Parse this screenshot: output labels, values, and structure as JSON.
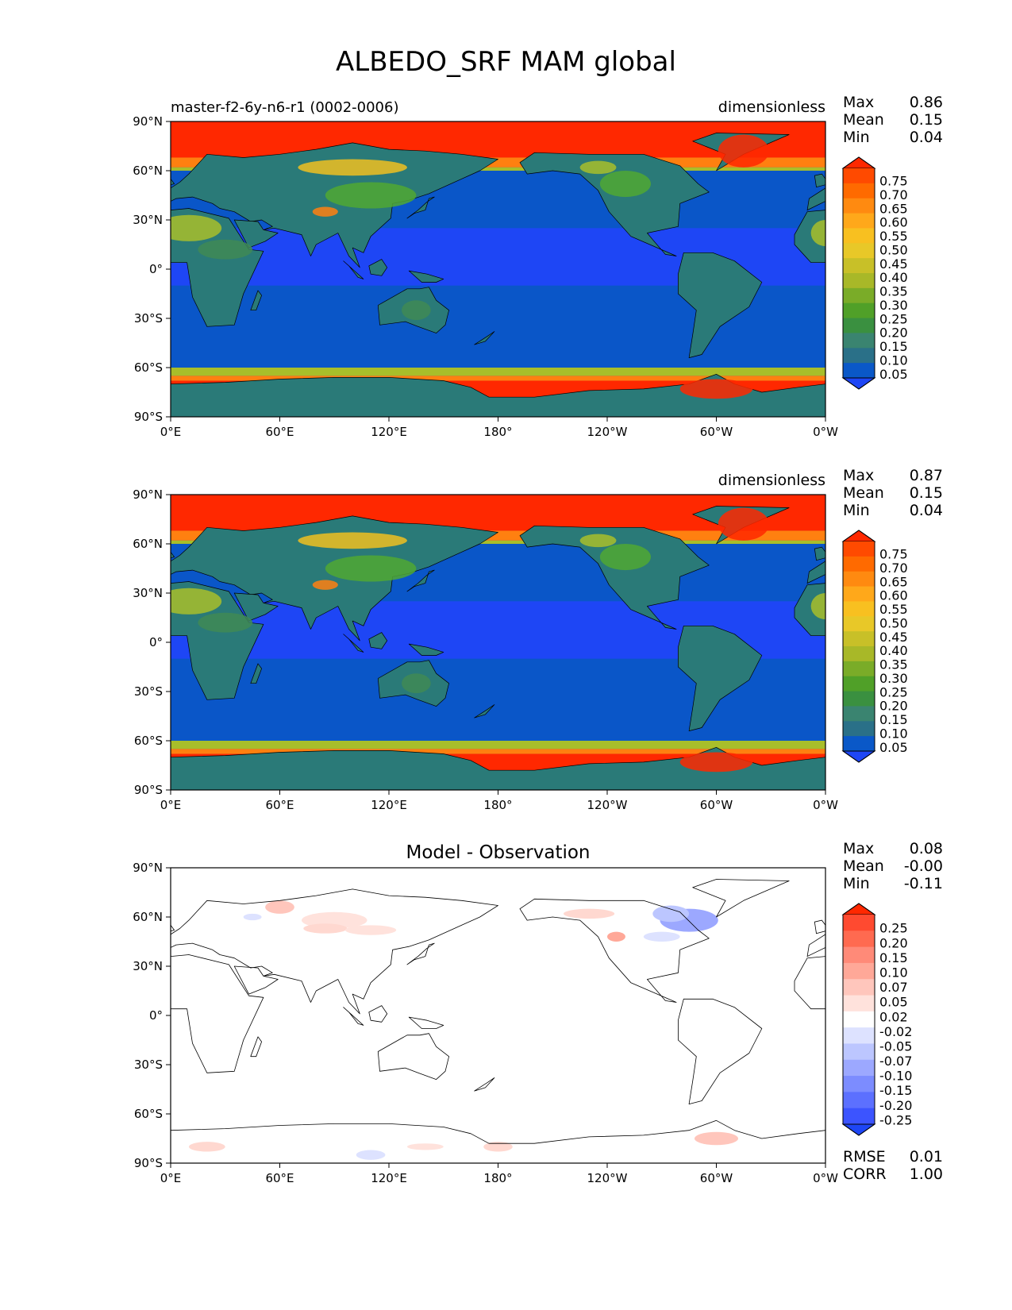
{
  "title": "ALBEDO_SRF MAM global",
  "colors": {
    "land_blue": "#0a56c8",
    "ocean_blue": "#1e46f5",
    "green_dark": "#2a7a78",
    "green": "#3f8a55",
    "green_bright": "#50a832",
    "yellow_green": "#a8be2a",
    "yellow": "#f0c020",
    "orange": "#ff8010",
    "red": "#ff2800"
  },
  "chart_data": [
    {
      "type": "heatmap",
      "title": "",
      "left_title": "master-f2-6y-n6-r1 (0002-0006)",
      "units": "dimensionless",
      "xlim": [
        0,
        360
      ],
      "ylim": [
        -90,
        90
      ],
      "x_ticks": [
        "0°E",
        "60°E",
        "120°E",
        "180°",
        "120°W",
        "60°W",
        "0°W"
      ],
      "y_ticks": [
        "90°N",
        "60°N",
        "30°N",
        "0°",
        "30°S",
        "60°S",
        "90°S"
      ],
      "stats": {
        "max_label": "Max",
        "max": "0.86",
        "mean_label": "Mean",
        "mean": "0.15",
        "min_label": "Min",
        "min": "0.04"
      },
      "colorbar_ticks": [
        "0.75",
        "0.70",
        "0.65",
        "0.60",
        "0.55",
        "0.50",
        "0.45",
        "0.40",
        "0.35",
        "0.30",
        "0.25",
        "0.20",
        "0.15",
        "0.10",
        "0.05"
      ],
      "colorbar_colors": [
        "#ff2800",
        "#ff4a00",
        "#ff6a00",
        "#ff8a10",
        "#ffa81a",
        "#f8c020",
        "#e8c828",
        "#c8c028",
        "#a8b828",
        "#7aac28",
        "#50a028",
        "#3a9040",
        "#3a8470",
        "#2a7088",
        "#0a58c8",
        "#1e46f5"
      ]
    },
    {
      "type": "heatmap",
      "title": "",
      "left_title": "",
      "units": "dimensionless",
      "xlim": [
        0,
        360
      ],
      "ylim": [
        -90,
        90
      ],
      "x_ticks": [
        "0°E",
        "60°E",
        "120°E",
        "180°",
        "120°W",
        "60°W",
        "0°W"
      ],
      "y_ticks": [
        "90°N",
        "60°N",
        "30°N",
        "0°",
        "30°S",
        "60°S",
        "90°S"
      ],
      "stats": {
        "max_label": "Max",
        "max": "0.87",
        "mean_label": "Mean",
        "mean": "0.15",
        "min_label": "Min",
        "min": "0.04"
      },
      "colorbar_ticks": [
        "0.75",
        "0.70",
        "0.65",
        "0.60",
        "0.55",
        "0.50",
        "0.45",
        "0.40",
        "0.35",
        "0.30",
        "0.25",
        "0.20",
        "0.15",
        "0.10",
        "0.05"
      ],
      "colorbar_colors": [
        "#ff2800",
        "#ff4a00",
        "#ff6a00",
        "#ff8a10",
        "#ffa81a",
        "#f8c020",
        "#e8c828",
        "#c8c028",
        "#a8b828",
        "#7aac28",
        "#50a028",
        "#3a9040",
        "#3a8470",
        "#2a7088",
        "#0a58c8",
        "#1e46f5"
      ]
    },
    {
      "type": "heatmap",
      "title": "Model - Observation",
      "left_title": "",
      "units": "",
      "xlim": [
        0,
        360
      ],
      "ylim": [
        -90,
        90
      ],
      "x_ticks": [
        "0°E",
        "60°E",
        "120°E",
        "180°",
        "120°W",
        "60°W",
        "0°W"
      ],
      "y_ticks": [
        "90°N",
        "60°N",
        "30°N",
        "0°",
        "30°S",
        "60°S",
        "90°S"
      ],
      "stats": {
        "max_label": "Max",
        "max": "0.08",
        "mean_label": "Mean",
        "mean": "-0.00",
        "min_label": "Min",
        "min": "-0.11"
      },
      "extra_stats": {
        "rmse_label": "RMSE",
        "rmse": "0.01",
        "corr_label": "CORR",
        "corr": "1.00"
      },
      "colorbar_ticks": [
        "0.25",
        "0.20",
        "0.15",
        "0.10",
        "0.07",
        "0.05",
        "0.02",
        "-0.02",
        "-0.05",
        "-0.07",
        "-0.10",
        "-0.15",
        "-0.20",
        "-0.25"
      ],
      "colorbar_colors": [
        "#ff2800",
        "#ff4a30",
        "#ff6a50",
        "#ff8a78",
        "#ffa898",
        "#ffc6bc",
        "#ffe2dc",
        "#ffffff",
        "#dde2ff",
        "#bcc6ff",
        "#9ca8ff",
        "#7c8cff",
        "#5c70ff",
        "#3c54ff",
        "#1e46f5"
      ]
    }
  ]
}
